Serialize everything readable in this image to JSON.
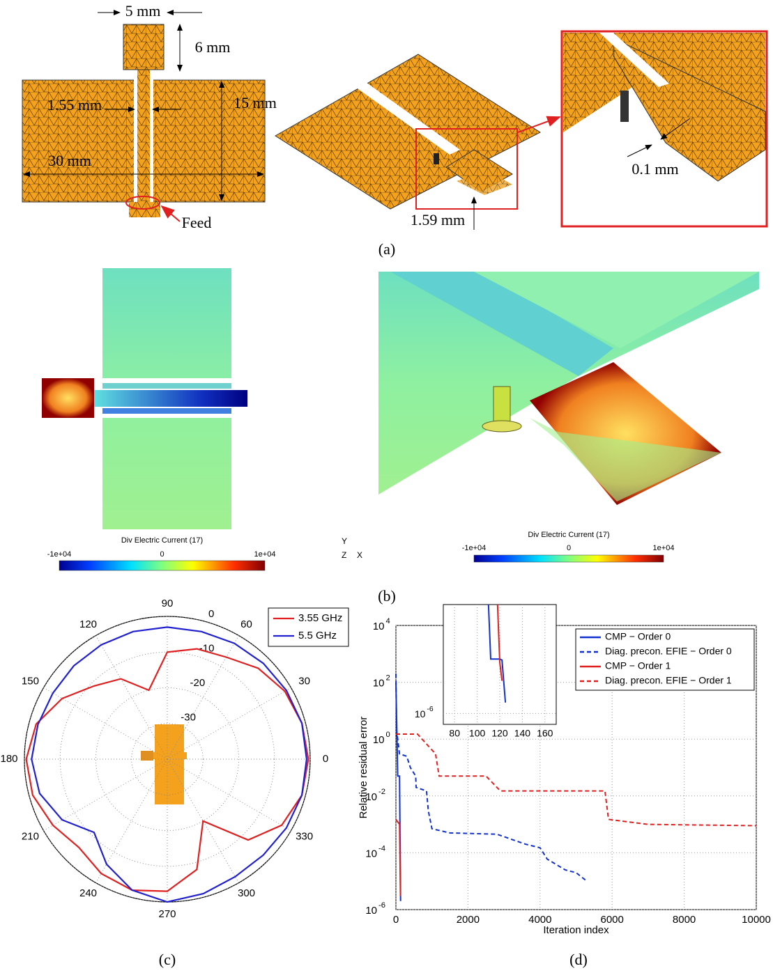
{
  "panel_a": {
    "label": "(a)",
    "dimensions": [
      "5 mm",
      "6 mm",
      "15 mm",
      "1.55 mm",
      "30 mm",
      "1.59 mm",
      "0.1 mm"
    ],
    "feed": "Feed"
  },
  "panel_b": {
    "label": "(b)",
    "axes": [
      "Y",
      "Z",
      "X"
    ],
    "colorbars": [
      {
        "title": "Div Electric Current (17)",
        "lim": [
          -10000,
          10000
        ],
        "ticks": [
          {
            "value": -10000,
            "label": "-1e+04"
          },
          0,
          {
            "value": 10000,
            "label": "1e+04"
          }
        ]
      },
      {
        "title": "Div Electric Current (17)",
        "lim": [
          -10000,
          10000
        ],
        "ticks": [
          {
            "value": -10000,
            "label": "-1e+04"
          },
          0,
          {
            "value": 10000,
            "label": "1e+04"
          }
        ]
      }
    ]
  },
  "chart_data": [
    {
      "type": "polar",
      "label": "(c)",
      "x": [
        0,
        15,
        30,
        45,
        60,
        75,
        90,
        105,
        120,
        135,
        150,
        165,
        180,
        195,
        210,
        225,
        240,
        255,
        270,
        285,
        300,
        315,
        330,
        345
      ],
      "xticks": [
        0,
        30,
        60,
        90,
        120,
        150,
        180,
        210,
        240,
        270,
        300,
        330
      ],
      "ylim": [
        -40,
        0
      ],
      "yticks": [
        -30,
        -20,
        -10,
        0
      ],
      "grid": true,
      "legend": "top-right",
      "series": [
        {
          "name": "3.55 GHz",
          "color": "#e02020",
          "values": [
            -0.5,
            -1,
            -2,
            -4,
            -7,
            -8,
            -10,
            -20,
            -14,
            -11,
            -6,
            -2,
            -0.5,
            -1,
            -3,
            -5,
            -3,
            -2,
            -3,
            -8,
            -20,
            -8,
            -3,
            -1
          ]
        },
        {
          "name": "5.5 GHz",
          "color": "#2020d0",
          "values": [
            -1,
            -1,
            -1.5,
            -2,
            -2.5,
            -3,
            -3,
            -3,
            -3,
            -3,
            -3,
            -2.5,
            -2,
            -3,
            -6,
            -11,
            -6,
            -2,
            0,
            -1,
            -2,
            -2,
            -1.5,
            -1
          ]
        }
      ]
    },
    {
      "type": "line",
      "label": "(d)",
      "xlabel": "Iteration index",
      "ylabel": "Relative residual error",
      "xlim": [
        0,
        10000
      ],
      "xticks": [
        0,
        2000,
        4000,
        6000,
        8000,
        10000
      ],
      "ylim": [
        1e-06,
        10000
      ],
      "log_y": true,
      "grid": true,
      "legend": "top-right",
      "yticks": [
        {
          "value": 10000,
          "label": "10",
          "exponent": "4"
        },
        {
          "value": 100,
          "label": "10",
          "exponent": "2"
        },
        {
          "value": 1,
          "label": "10",
          "exponent": "0"
        },
        {
          "value": 0.01,
          "label": "10",
          "exponent": "-2"
        },
        {
          "value": 0.0001,
          "label": "10",
          "exponent": "-4"
        },
        {
          "value": 1e-06,
          "label": "10",
          "exponent": "-6"
        }
      ],
      "series": [
        {
          "name": "CMP − Order 0",
          "color": "#1030d0",
          "dash": false,
          "x": [
            0,
            50,
            100,
            130
          ],
          "values": [
            100,
            0.05,
            0.05,
            2e-06
          ]
        },
        {
          "name": "Diag. precon. EFIE − Order 0",
          "color": "#1030d0",
          "dash": true,
          "x": [
            0,
            20,
            100,
            300,
            400,
            550,
            560,
            850,
            900,
            1000,
            1500,
            2800,
            3200,
            3600,
            4000,
            4200,
            4700,
            5000,
            5300
          ],
          "values": [
            200,
            2,
            0.3,
            0.25,
            0.1,
            0.05,
            0.02,
            0.015,
            0.003,
            0.0007,
            0.0005,
            0.00045,
            0.0003,
            0.0002,
            0.00015,
            6e-05,
            2.5e-05,
            2e-05,
            1e-05
          ]
        },
        {
          "name": "CMP − Order 1",
          "color": "#e02020",
          "dash": false,
          "x": [
            0,
            100,
            125
          ],
          "values": [
            0.0015,
            0.001,
            3e-06
          ]
        },
        {
          "name": "Diag. precon. EFIE − Order 1",
          "color": "#e02020",
          "dash": true,
          "x": [
            0,
            600,
            1100,
            1200,
            2500,
            2900,
            5800,
            5900,
            6500,
            7000,
            10000
          ],
          "values": [
            1.5,
            1.5,
            0.3,
            0.05,
            0.05,
            0.015,
            0.015,
            0.0015,
            0.0012,
            0.001,
            0.0009
          ]
        }
      ]
    },
    {
      "type": "line",
      "xlim": [
        70,
        170
      ],
      "xticks": [
        80,
        100,
        120,
        140,
        160
      ],
      "ylim": [
        1e-07,
        10000
      ],
      "log_y": true,
      "grid": true,
      "yticks": [
        {
          "value": 1e-06,
          "label": "10",
          "exponent": "-6"
        }
      ],
      "series": [
        {
          "color": "#1030d0",
          "dash": false,
          "x": [
            110,
            112,
            120,
            122,
            125
          ],
          "values": [
            10000,
            0.1,
            0.1,
            0.08,
            1e-05
          ]
        },
        {
          "color": "#e02020",
          "dash": false,
          "x": [
            118,
            120,
            122
          ],
          "values": [
            10000,
            0.05,
            0.001
          ]
        }
      ]
    }
  ]
}
